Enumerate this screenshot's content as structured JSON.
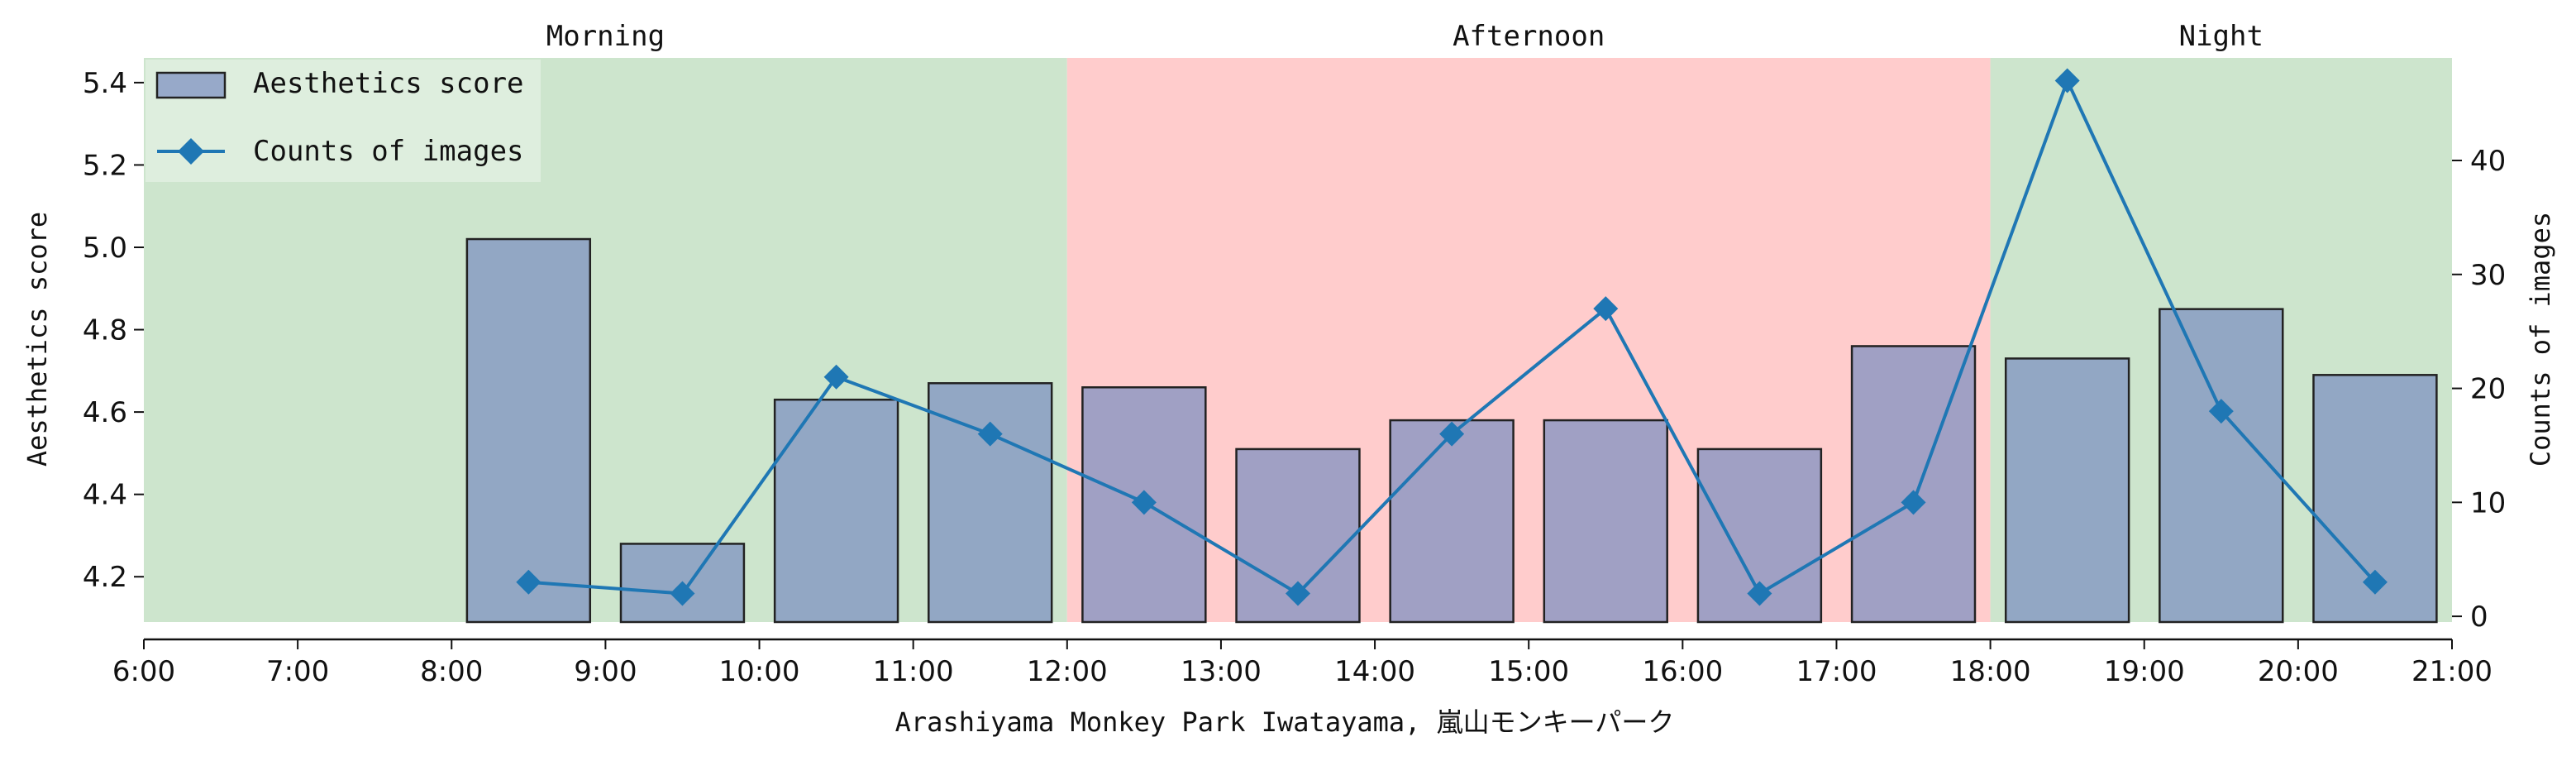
{
  "chart_data": {
    "type": "bar",
    "title": "",
    "xlabel": "Arashiyama Monkey Park Iwatayama, 嵐山モンキーパーク",
    "ylabel_left": "Aesthetics score",
    "ylabel_right": "Counts of images",
    "x_ticks": [
      6,
      7,
      8,
      9,
      10,
      11,
      12,
      13,
      14,
      15,
      16,
      17,
      18,
      19,
      20,
      21
    ],
    "x_tick_labels": [
      "6:00",
      "7:00",
      "8:00",
      "9:00",
      "10:00",
      "11:00",
      "12:00",
      "13:00",
      "14:00",
      "15:00",
      "16:00",
      "17:00",
      "18:00",
      "19:00",
      "20:00",
      "21:00"
    ],
    "xlim": [
      6,
      21
    ],
    "ylim_left": [
      4.09,
      5.46
    ],
    "y_ticks_left": [
      4.2,
      4.4,
      4.6,
      4.8,
      5.0,
      5.2,
      5.4
    ],
    "y_tick_labels_left": [
      "4.2",
      "4.4",
      "4.6",
      "4.8",
      "5.0",
      "5.2",
      "5.4"
    ],
    "ylim_right": [
      -0.5,
      49.0
    ],
    "y_ticks_right": [
      0,
      10,
      20,
      30,
      40
    ],
    "y_tick_labels_right": [
      "0",
      "10",
      "20",
      "30",
      "40"
    ],
    "regions": [
      {
        "label": "Morning",
        "start": 6,
        "end": 12,
        "color": "#cde5cd"
      },
      {
        "label": "Afternoon",
        "start": 12,
        "end": 18,
        "color": "#ffcccc"
      },
      {
        "label": "Night",
        "start": 18,
        "end": 21,
        "color": "#cde5cd"
      }
    ],
    "series": [
      {
        "name": "Aesthetics score",
        "kind": "bar",
        "axis": "left",
        "color": "#7b8fc0",
        "x": [
          8.5,
          9.5,
          10.5,
          11.5,
          12.5,
          13.5,
          14.5,
          15.5,
          16.5,
          17.5,
          18.5,
          19.5,
          20.5
        ],
        "values": [
          5.02,
          4.28,
          4.63,
          4.67,
          4.66,
          4.51,
          4.58,
          4.58,
          4.51,
          4.76,
          4.73,
          4.85,
          4.69
        ]
      },
      {
        "name": "Counts of images",
        "kind": "line",
        "axis": "right",
        "color": "#1f77b4",
        "marker": "diamond",
        "x": [
          8.5,
          9.5,
          10.5,
          11.5,
          12.5,
          13.5,
          14.5,
          15.5,
          16.5,
          17.5,
          18.5,
          19.5,
          20.5
        ],
        "values": [
          3,
          2,
          21,
          16,
          10,
          2,
          16,
          27,
          2,
          10,
          47,
          18,
          3
        ]
      }
    ],
    "legend_position": "top-left",
    "grid": false
  }
}
